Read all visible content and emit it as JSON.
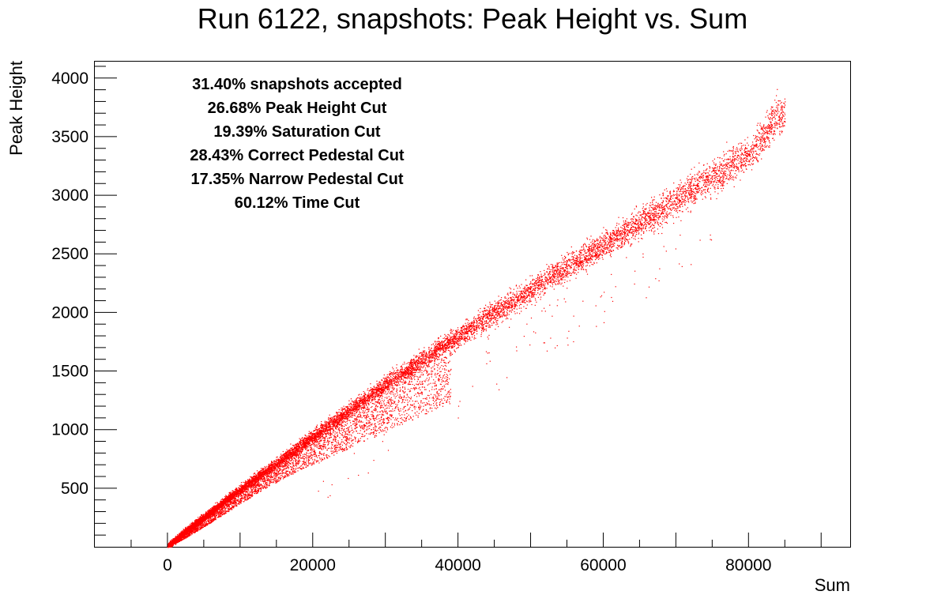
{
  "chart_data": {
    "type": "scatter",
    "title": "Run 6122, snapshots: Peak Height vs. Sum",
    "xlabel": "Sum",
    "ylabel": "Peak Height",
    "xlim": [
      -10000,
      94000
    ],
    "ylim": [
      0,
      4140
    ],
    "x_ticks": [
      0,
      20000,
      40000,
      60000,
      80000
    ],
    "x_tick_labels": [
      "0",
      "20000",
      "40000",
      "60000",
      "80000"
    ],
    "y_ticks": [
      500,
      1000,
      1500,
      2000,
      2500,
      3000,
      3500,
      4000
    ],
    "y_tick_labels": [
      "500",
      "1000",
      "1500",
      "2000",
      "2500",
      "3000",
      "3500",
      "4000"
    ],
    "grid": false,
    "marker_color": "#ff0000",
    "annotations": [
      "31.40% snapshots accepted",
      "26.68% Peak Height Cut",
      "19.39% Saturation Cut",
      "28.43% Correct Pedestal Cut",
      "17.35% Narrow Pedestal Cut",
      "60.12% Time Cut"
    ],
    "series": [
      {
        "trend": "main band, Peak Height rising roughly linearly with Sum",
        "x": [
          500,
          2000,
          4000,
          6000,
          8000,
          10000,
          12000,
          14000,
          16000,
          18000,
          20000,
          22000,
          24000,
          26000,
          28000,
          30000,
          32000,
          34000,
          36000,
          38000,
          40000,
          42000,
          44000,
          46000,
          48000,
          50000,
          52000,
          54000,
          56000,
          58000,
          60000,
          62000,
          64000,
          66000,
          68000,
          70000,
          72000,
          74000,
          76000,
          78000,
          80000,
          82000,
          84000
        ],
        "y": [
          30,
          110,
          210,
          300,
          400,
          490,
          580,
          670,
          760,
          850,
          940,
          1030,
          1120,
          1210,
          1300,
          1390,
          1470,
          1550,
          1640,
          1720,
          1800,
          1880,
          1960,
          2040,
          2110,
          2190,
          2270,
          2350,
          2420,
          2500,
          2580,
          2650,
          2730,
          2800,
          2880,
          2960,
          3040,
          3110,
          3190,
          3270,
          3350,
          3500,
          3700
        ]
      },
      {
        "trend": "lower secondary branch below the main band",
        "x": [
          2000,
          6000,
          10000,
          14000,
          18000,
          22000,
          26000,
          30000,
          34000,
          38000
        ],
        "y": [
          60,
          210,
          370,
          520,
          650,
          760,
          870,
          980,
          1090,
          1200
        ]
      }
    ]
  }
}
